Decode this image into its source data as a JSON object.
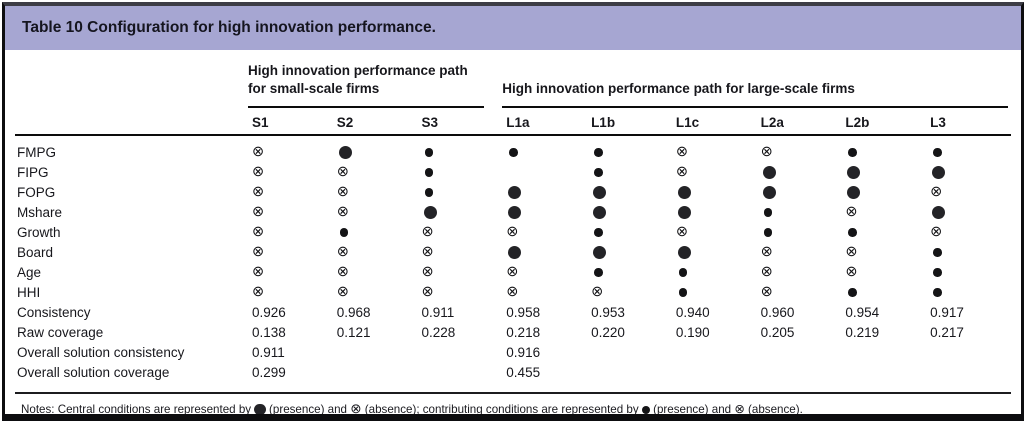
{
  "title": "Table 10 Configuration for high innovation performance.",
  "colors": {
    "title_band": "#a6a6d2",
    "border": "#0d0d0f",
    "symbol": "#1a1a1e"
  },
  "groups": [
    {
      "label": "High innovation performance path for small-scale firms",
      "span": 3
    },
    {
      "label": "High innovation performance path for large-scale firms",
      "span": 6
    }
  ],
  "columns": [
    "S1",
    "S2",
    "S3",
    "L1a",
    "L1b",
    "L1c",
    "L2a",
    "L2b",
    "L3"
  ],
  "legend": {
    "central_presence": "large filled circle",
    "contributing_presence": "small filled circle",
    "absence_glyph": "⊗"
  },
  "chart_data": {
    "type": "table",
    "title": "Table 10 Configuration for high innovation performance.",
    "cell_codes": {
      "cp": "central presence (large filled circle)",
      "p": "contributing presence (small filled circle)",
      "a": "absence (crossed circle)",
      "": "blank"
    },
    "condition_rows": [
      {
        "label": "FMPG",
        "cells": [
          "a",
          "cp",
          "p",
          "p",
          "p",
          "a",
          "a",
          "p",
          "p"
        ]
      },
      {
        "label": "FIPG",
        "cells": [
          "a",
          "a",
          "p",
          "",
          "p",
          "a",
          "cp",
          "cp",
          "cp"
        ]
      },
      {
        "label": "FOPG",
        "cells": [
          "a",
          "a",
          "p",
          "cp",
          "cp",
          "cp",
          "cp",
          "cp",
          "a"
        ]
      },
      {
        "label": "Mshare",
        "cells": [
          "a",
          "a",
          "cp",
          "cp",
          "cp",
          "cp",
          "p",
          "a",
          "cp"
        ]
      },
      {
        "label": "Growth",
        "cells": [
          "a",
          "p",
          "a",
          "a",
          "p",
          "a",
          "p",
          "p",
          "a"
        ]
      },
      {
        "label": "Board",
        "cells": [
          "a",
          "a",
          "a",
          "cp",
          "cp",
          "cp",
          "a",
          "a",
          "p"
        ]
      },
      {
        "label": "Age",
        "cells": [
          "a",
          "a",
          "a",
          "a",
          "p",
          "p",
          "a",
          "a",
          "p"
        ]
      },
      {
        "label": "HHI",
        "cells": [
          "a",
          "a",
          "a",
          "a",
          "a",
          "p",
          "a",
          "p",
          "p"
        ]
      }
    ],
    "metric_rows": [
      {
        "label": "Consistency",
        "values": [
          "0.926",
          "0.968",
          "0.911",
          "0.958",
          "0.953",
          "0.940",
          "0.960",
          "0.954",
          "0.917"
        ]
      },
      {
        "label": "Raw coverage",
        "values": [
          "0.138",
          "0.121",
          "0.228",
          "0.218",
          "0.220",
          "0.190",
          "0.205",
          "0.219",
          "0.217"
        ]
      },
      {
        "label": "Overall solution consistency",
        "values": [
          "0.911",
          "",
          "",
          "0.916",
          "",
          "",
          "",
          "",
          ""
        ]
      },
      {
        "label": "Overall solution coverage",
        "values": [
          "0.299",
          "",
          "",
          "0.455",
          "",
          "",
          "",
          "",
          ""
        ]
      }
    ]
  },
  "notes": {
    "p1": "Notes: Central conditions are represented by ",
    "p2": " (presence) and ",
    "p3": " (absence); contributing conditions are represented by ",
    "p4": " (presence) and ",
    "p5": " (absence)."
  }
}
